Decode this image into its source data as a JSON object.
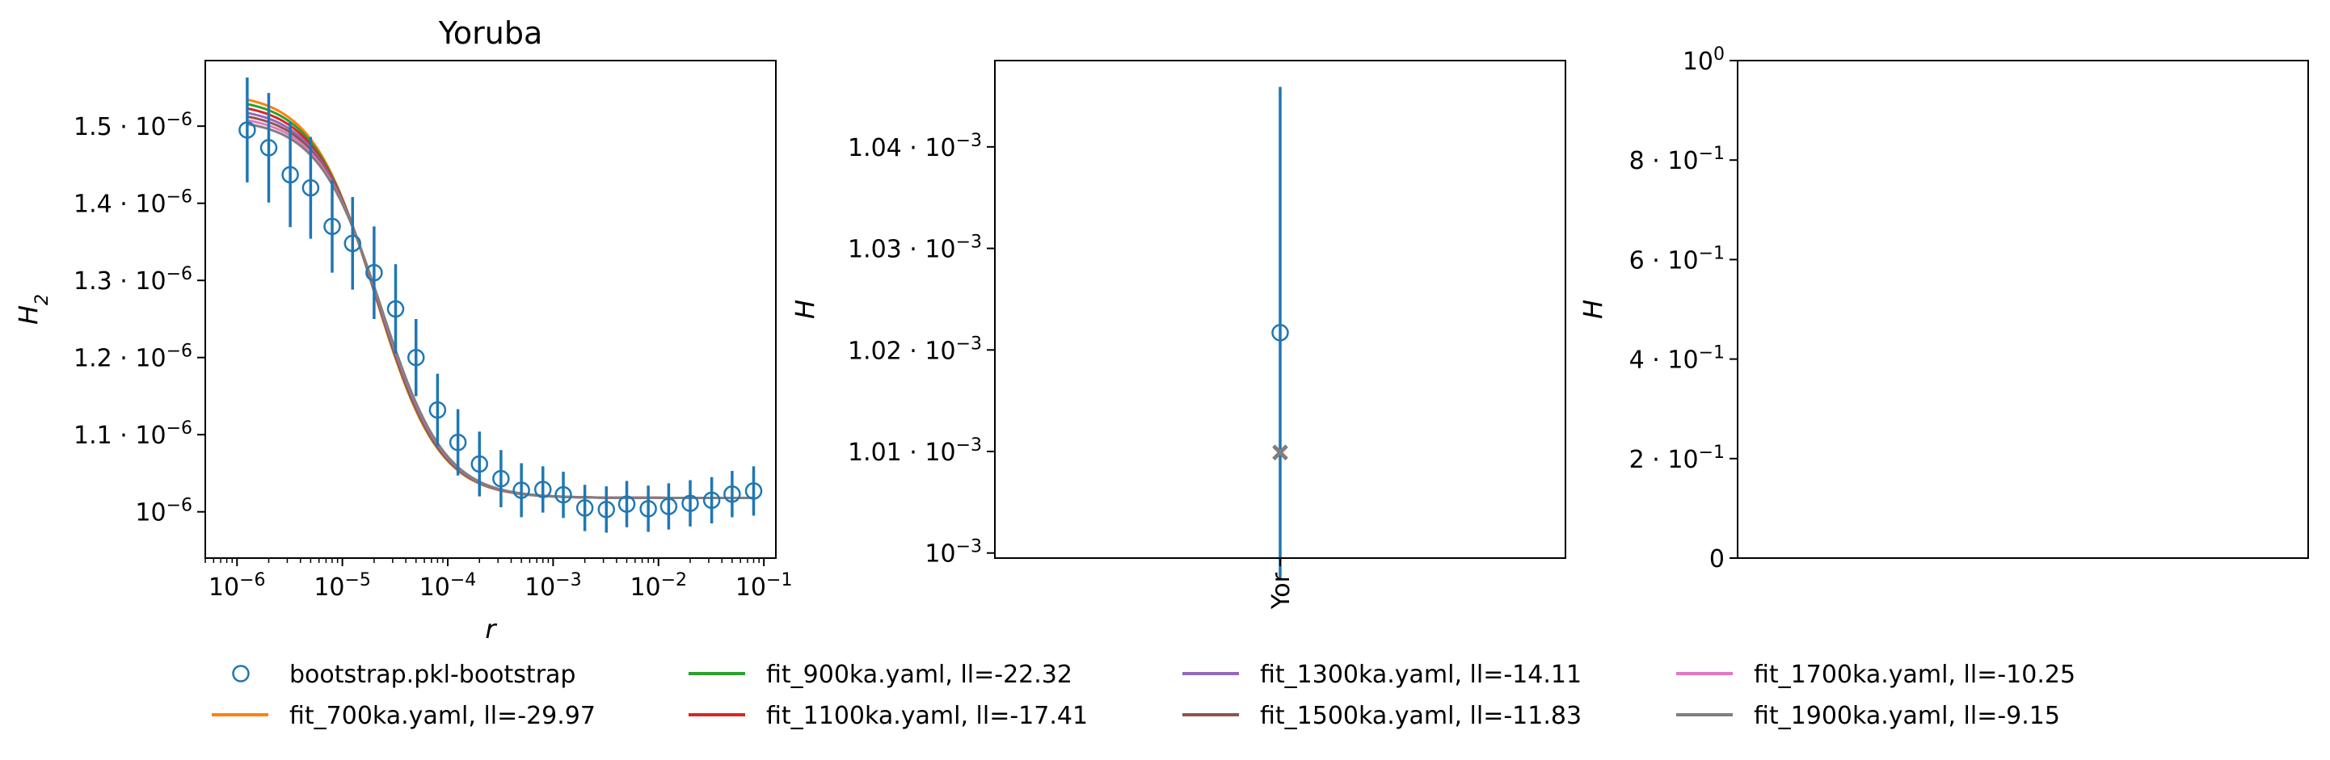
{
  "chart_data": [
    {
      "type": "scatter",
      "title": "Yoruba",
      "xlabel": "r",
      "ylabel": "H_2",
      "xscale": "log",
      "xlim": [
        5e-07,
        0.13
      ],
      "ylim": [
        9.4e-07,
        1.585e-06
      ],
      "xtick_labels": [
        {
          "base": "10",
          "exp": "−6",
          "value": 1e-06
        },
        {
          "base": "10",
          "exp": "−5",
          "value": 1e-05
        },
        {
          "base": "10",
          "exp": "−4",
          "value": 0.0001
        },
        {
          "base": "10",
          "exp": "−3",
          "value": 0.001
        },
        {
          "base": "10",
          "exp": "−2",
          "value": 0.01
        },
        {
          "base": "10",
          "exp": "−1",
          "value": 0.1
        }
      ],
      "ytick_labels": [
        {
          "mant": "1.5",
          "base": "10",
          "exp": "−6",
          "value": 1.5e-06
        },
        {
          "mant": "1.4",
          "base": "10",
          "exp": "−6",
          "value": 1.4e-06
        },
        {
          "mant": "1.3",
          "base": "10",
          "exp": "−6",
          "value": 1.3e-06
        },
        {
          "mant": "1.2",
          "base": "10",
          "exp": "−6",
          "value": 1.2e-06
        },
        {
          "mant": "1.1",
          "base": "10",
          "exp": "−6",
          "value": 1.1e-06
        },
        {
          "mant": "",
          "base": "10",
          "exp": "−6",
          "value": 1e-06
        }
      ],
      "data": {
        "name": "bootstrap.pkl-bootstrap",
        "color": "#1f77b4",
        "x": [
          1.25e-06,
          2e-06,
          3.2e-06,
          5e-06,
          8e-06,
          1.25e-05,
          2e-05,
          3.2e-05,
          5e-05,
          8e-05,
          0.000125,
          0.0002,
          0.00032,
          0.0005,
          0.0008,
          0.00125,
          0.002,
          0.0032,
          0.005,
          0.008,
          0.0125,
          0.02,
          0.032,
          0.05,
          0.08
        ],
        "y": [
          1.495e-06,
          1.472e-06,
          1.437e-06,
          1.42e-06,
          1.37e-06,
          1.348e-06,
          1.31e-06,
          1.263e-06,
          1.2e-06,
          1.132e-06,
          1.09e-06,
          1.062e-06,
          1.043e-06,
          1.028e-06,
          1.029e-06,
          1.022e-06,
          1.005e-06,
          1.003e-06,
          1.01e-06,
          1.004e-06,
          1.007e-06,
          1.011e-06,
          1.015e-06,
          1.023e-06,
          1.027e-06
        ],
        "err": [
          6.8e-08,
          7.1e-08,
          6.8e-08,
          6.6e-08,
          6e-08,
          6e-08,
          6e-08,
          5.8e-08,
          5e-08,
          4.7e-08,
          4.3e-08,
          4.2e-08,
          3.7e-08,
          3.5e-08,
          3e-08,
          3e-08,
          3e-08,
          3e-08,
          3e-08,
          3e-08,
          3e-08,
          3e-08,
          3e-08,
          3e-08,
          3.2e-08
        ]
      },
      "fits": [
        {
          "name": "fit_700ka.yaml, ll=-29.97",
          "color": "#ff7f0e",
          "start": 1.533e-06,
          "mid": 2.05e-05
        },
        {
          "name": "fit_900ka.yaml, ll=-22.32",
          "color": "#2ca02c",
          "start": 1.527e-06,
          "mid": 2.1e-05
        },
        {
          "name": "fit_1100ka.yaml, ll=-17.41",
          "color": "#d62728",
          "start": 1.521e-06,
          "mid": 2.15e-05
        },
        {
          "name": "fit_1300ka.yaml, ll=-14.11",
          "color": "#9467bd",
          "start": 1.515e-06,
          "mid": 2.2e-05
        },
        {
          "name": "fit_1500ka.yaml, ll=-11.83",
          "color": "#8c564b",
          "start": 1.51e-06,
          "mid": 2.25e-05
        },
        {
          "name": "fit_1700ka.yaml, ll=-10.25",
          "color": "#e377c2",
          "start": 1.505e-06,
          "mid": 2.3e-05
        },
        {
          "name": "fit_1900ka.yaml, ll=-9.15",
          "color": "#7f7f7f",
          "start": 1.5e-06,
          "mid": 2.35e-05
        }
      ],
      "fit_end": 1.018e-06
    },
    {
      "type": "scatter",
      "title": "",
      "xlabel": "",
      "ylabel": "H",
      "categories": [
        "Yor"
      ],
      "ylim": [
        0.0009995,
        0.0010485
      ],
      "ytick_labels": [
        {
          "mant": "1.04",
          "base": "10",
          "exp": "−3",
          "value": 0.00104
        },
        {
          "mant": "1.03",
          "base": "10",
          "exp": "−3",
          "value": 0.00103
        },
        {
          "mant": "1.02",
          "base": "10",
          "exp": "−3",
          "value": 0.00102
        },
        {
          "mant": "1.01",
          "base": "10",
          "exp": "−3",
          "value": 0.00101
        },
        {
          "mant": "",
          "base": "10",
          "exp": "−3",
          "value": 0.001
        }
      ],
      "data": {
        "y": 0.0010217,
        "err": 2.42e-05
      },
      "fit_value": 0.0010099
    },
    {
      "type": "scatter",
      "title": "",
      "xlabel": "",
      "ylabel": "H",
      "ylim": [
        0,
        1
      ],
      "ytick_labels": [
        {
          "mant": "",
          "base": "10",
          "exp": "0",
          "value": 1.0
        },
        {
          "mant": "8",
          "base": "10",
          "exp": "−1",
          "value": 0.8
        },
        {
          "mant": "6",
          "base": "10",
          "exp": "−1",
          "value": 0.6
        },
        {
          "mant": "4",
          "base": "10",
          "exp": "−1",
          "value": 0.4
        },
        {
          "mant": "2",
          "base": "10",
          "exp": "−1",
          "value": 0.2
        },
        {
          "mant": "0",
          "base": "",
          "exp": "",
          "value": 0.0
        }
      ]
    }
  ],
  "legend": {
    "placement": "bottom",
    "entries": [
      "bootstrap.pkl-bootstrap",
      "fit_700ka.yaml, ll=-29.97",
      "fit_900ka.yaml, ll=-22.32",
      "fit_1100ka.yaml, ll=-17.41",
      "fit_1300ka.yaml, ll=-14.11",
      "fit_1500ka.yaml, ll=-11.83",
      "fit_1700ka.yaml, ll=-10.25",
      "fit_1900ka.yaml, ll=-9.15"
    ]
  }
}
